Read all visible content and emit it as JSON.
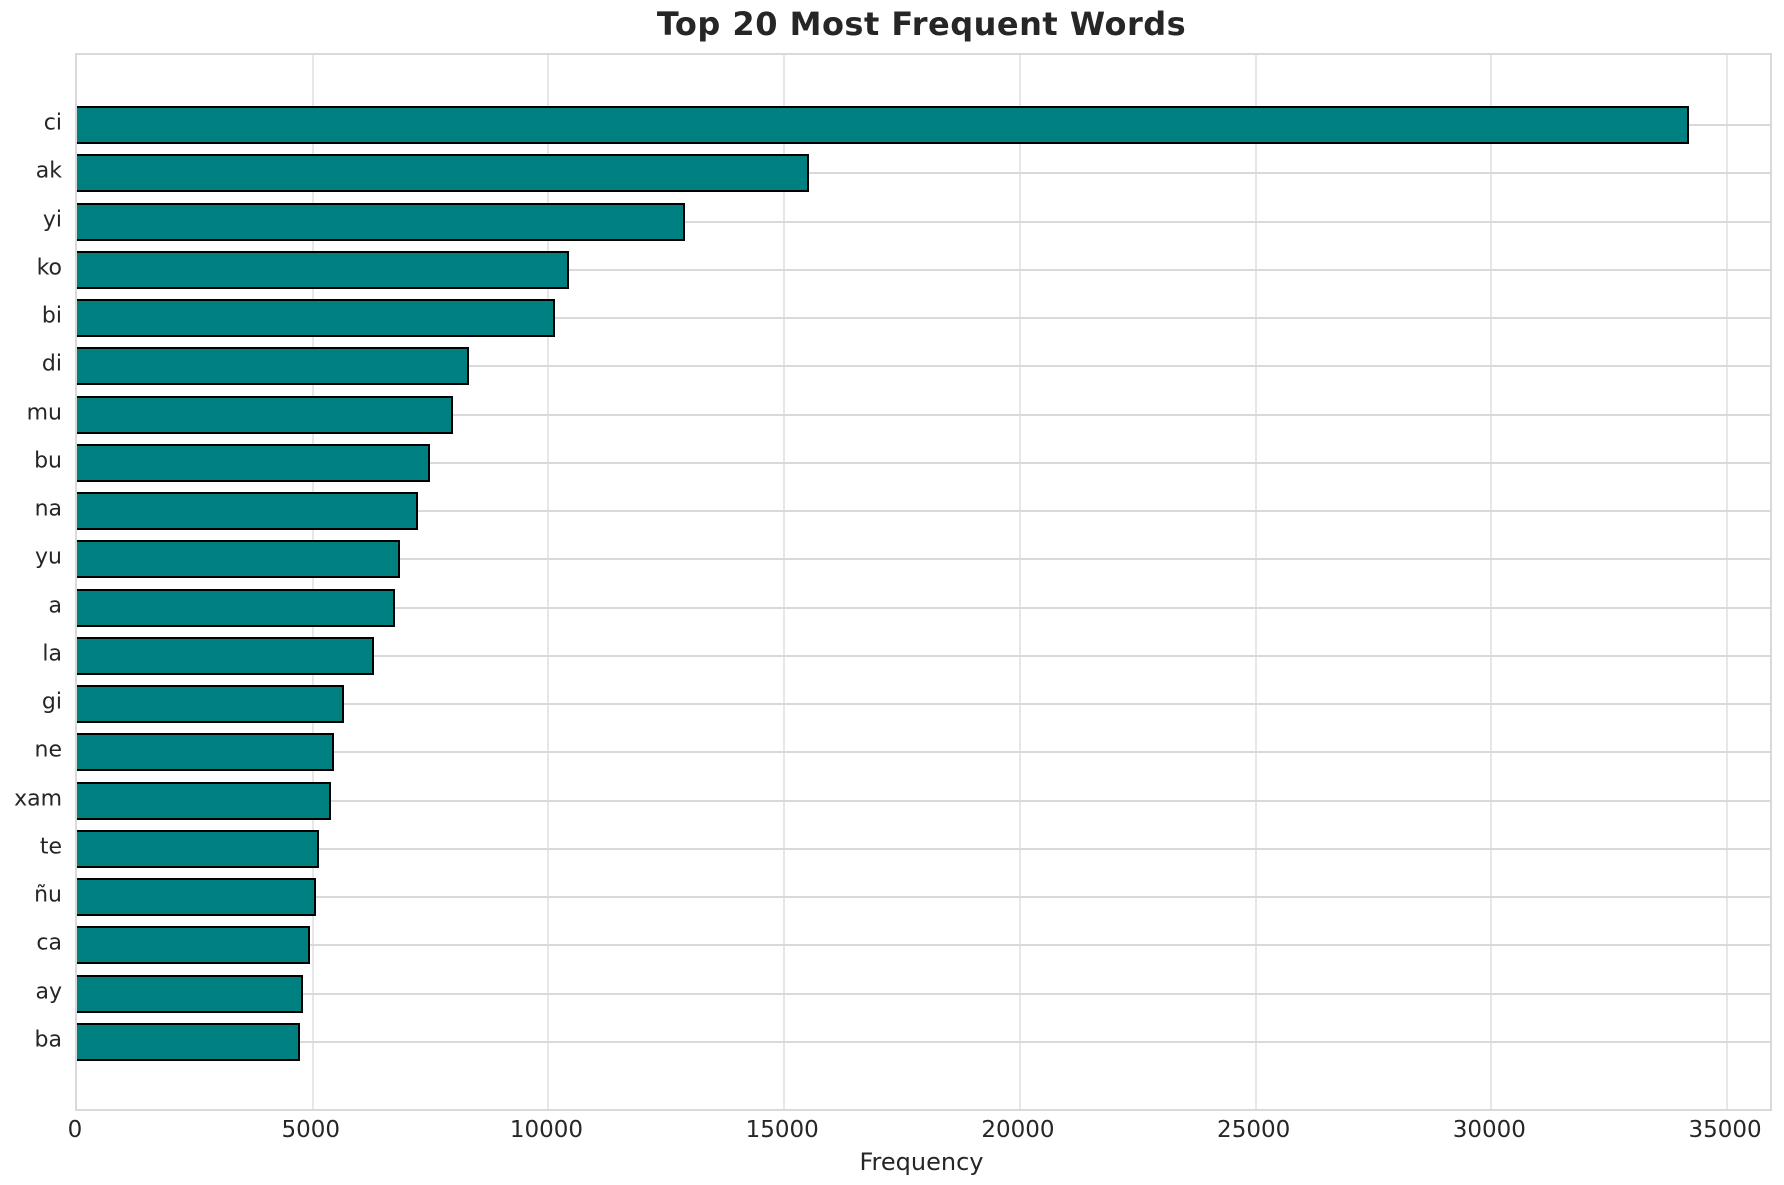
{
  "chart_data": {
    "type": "bar",
    "orientation": "horizontal",
    "title": "Top 20 Most Frequent Words",
    "xlabel": "Frequency",
    "ylabel": "",
    "categories": [
      "ci",
      "ak",
      "yi",
      "ko",
      "bi",
      "di",
      "mu",
      "bu",
      "na",
      "yu",
      "a",
      "la",
      "gi",
      "ne",
      "xam",
      "te",
      "ñu",
      "ca",
      "ay",
      "ba"
    ],
    "values": [
      34200,
      15530,
      12890,
      10430,
      10140,
      8320,
      7980,
      7490,
      7240,
      6860,
      6750,
      6310,
      5670,
      5460,
      5380,
      5140,
      5080,
      4950,
      4800,
      4740
    ],
    "xlim": [
      0,
      35910
    ],
    "xticks": [
      0,
      5000,
      10000,
      15000,
      20000,
      25000,
      30000,
      35000
    ],
    "xtick_labels": [
      "0",
      "5000",
      "10000",
      "15000",
      "20000",
      "25000",
      "30000",
      "35000"
    ],
    "grid": "both",
    "legend": "none",
    "colors": {
      "bar_fill": "#008080",
      "bar_edge": "#000000",
      "grid_h": "#d9d9d9",
      "grid_v": "#e7e7e7",
      "spine": "#d9d9d9",
      "text": "#262626",
      "background": "#ffffff"
    }
  }
}
